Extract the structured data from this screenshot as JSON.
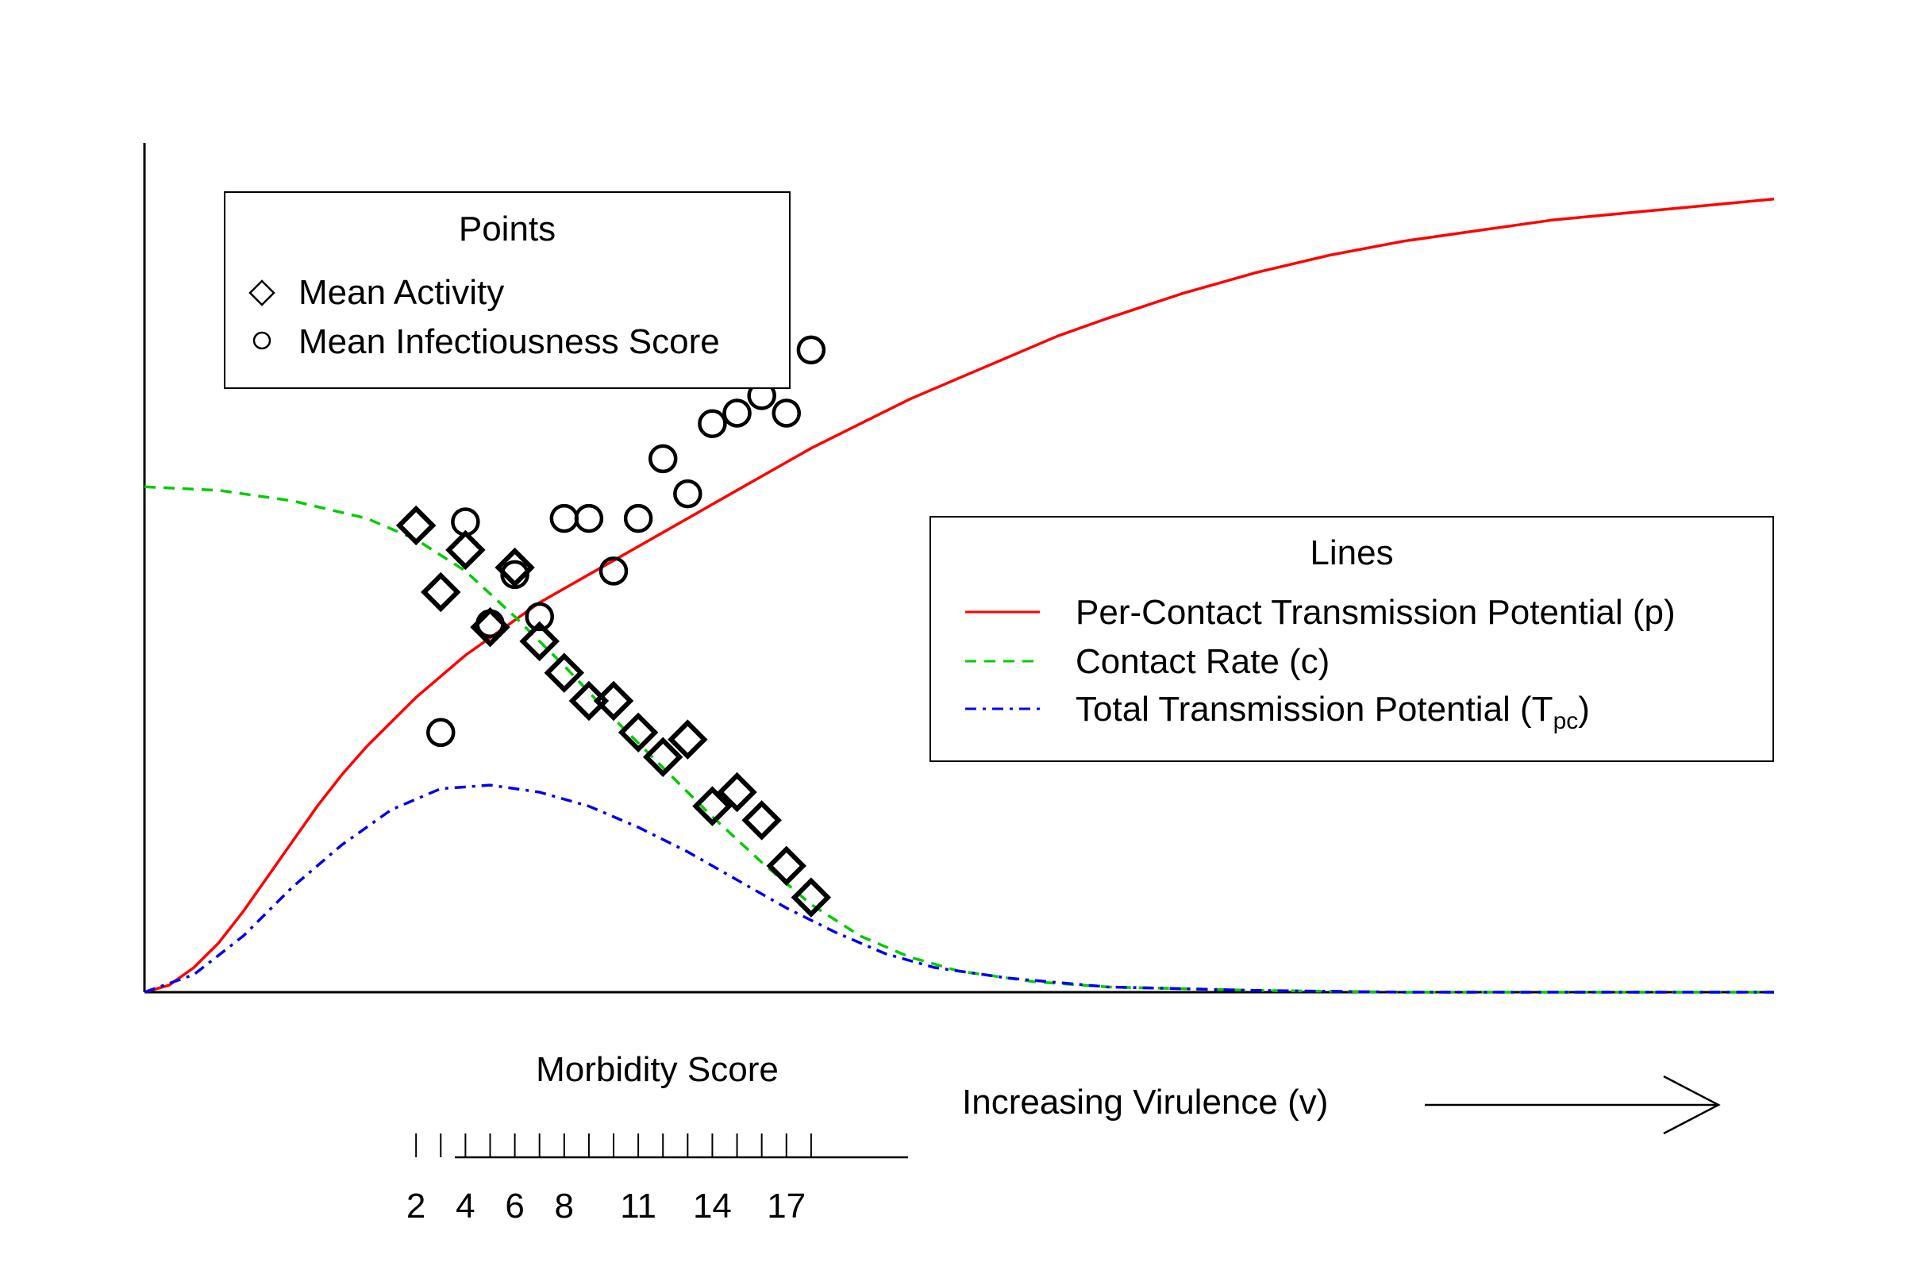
{
  "chart_data": {
    "type": "line",
    "title": "",
    "xlabel": "Increasing Virulence (v)",
    "ylabel": "",
    "x_axis_ticks": false,
    "y_axis_ticks": false,
    "grid": false,
    "secondary_axis": {
      "label": "Morbidity Score",
      "min": 2,
      "max": 18,
      "tick_labels": [
        "2",
        "4",
        "6",
        "8",
        "11",
        "14",
        "17"
      ],
      "tick_label_values": [
        2,
        4,
        6,
        8,
        11,
        14,
        17
      ],
      "minor_ticks": [
        2,
        3,
        4,
        5,
        6,
        7,
        8,
        9,
        10,
        11,
        12,
        13,
        14,
        15,
        16,
        17,
        18
      ]
    },
    "series": [
      {
        "name": "Per-Contact Transmission Potential (p)",
        "color": "#ff0000",
        "dash": "solid",
        "legend_sub": "",
        "points": [
          [
            -9,
            0.0
          ],
          [
            -8,
            0.02
          ],
          [
            -7,
            0.07
          ],
          [
            -6,
            0.14
          ],
          [
            -5,
            0.23
          ],
          [
            -4,
            0.33
          ],
          [
            -3,
            0.43
          ],
          [
            -2,
            0.53
          ],
          [
            -1,
            0.62
          ],
          [
            0,
            0.7
          ],
          [
            1,
            0.77
          ],
          [
            2,
            0.84
          ],
          [
            3,
            0.9
          ],
          [
            4,
            0.96
          ],
          [
            5,
            1.01
          ],
          [
            6,
            1.06
          ],
          [
            7,
            1.11
          ],
          [
            8,
            1.15
          ],
          [
            9,
            1.19
          ],
          [
            10,
            1.23
          ],
          [
            11,
            1.27
          ],
          [
            12,
            1.31
          ],
          [
            13,
            1.35
          ],
          [
            14,
            1.39
          ],
          [
            15,
            1.43
          ],
          [
            16,
            1.47
          ],
          [
            17,
            1.51
          ],
          [
            18,
            1.55
          ],
          [
            20,
            1.62
          ],
          [
            22,
            1.69
          ],
          [
            24,
            1.75
          ],
          [
            26,
            1.81
          ],
          [
            28,
            1.87
          ],
          [
            30,
            1.92
          ],
          [
            33,
            1.99
          ],
          [
            36,
            2.05
          ],
          [
            39,
            2.1
          ],
          [
            42,
            2.14
          ],
          [
            45,
            2.17
          ],
          [
            48,
            2.2
          ],
          [
            51,
            2.22
          ],
          [
            54,
            2.24
          ],
          [
            57,
            2.26
          ]
        ]
      },
      {
        "name": "Contact Rate (c)",
        "color": "#00cc00",
        "dash": "dashed",
        "legend_sub": "",
        "points": [
          [
            -9,
            1.44
          ],
          [
            -6,
            1.43
          ],
          [
            -3,
            1.4
          ],
          [
            0,
            1.35
          ],
          [
            2,
            1.29
          ],
          [
            4,
            1.2
          ],
          [
            6,
            1.07
          ],
          [
            8,
            0.93
          ],
          [
            10,
            0.78
          ],
          [
            12,
            0.64
          ],
          [
            14,
            0.5
          ],
          [
            16,
            0.37
          ],
          [
            18,
            0.25
          ],
          [
            20,
            0.16
          ],
          [
            22,
            0.1
          ],
          [
            24,
            0.06
          ],
          [
            27,
            0.03
          ],
          [
            30,
            0.015
          ],
          [
            36,
            0.005
          ],
          [
            42,
            0.0
          ],
          [
            57,
            0.0
          ]
        ]
      },
      {
        "name": "Total Transmission Potential (T",
        "color": "#0000ee",
        "dash": "dashdot",
        "legend_sub": "pc",
        "legend_suffix": ")",
        "points": [
          [
            -9,
            0.0
          ],
          [
            -7,
            0.05
          ],
          [
            -5,
            0.16
          ],
          [
            -3,
            0.3
          ],
          [
            -1,
            0.42
          ],
          [
            1,
            0.52
          ],
          [
            3,
            0.58
          ],
          [
            5,
            0.59
          ],
          [
            7,
            0.57
          ],
          [
            9,
            0.53
          ],
          [
            11,
            0.47
          ],
          [
            13,
            0.4
          ],
          [
            15,
            0.32
          ],
          [
            17,
            0.24
          ],
          [
            19,
            0.17
          ],
          [
            21,
            0.11
          ],
          [
            23,
            0.07
          ],
          [
            26,
            0.04
          ],
          [
            30,
            0.015
          ],
          [
            36,
            0.005
          ],
          [
            42,
            0.0
          ],
          [
            57,
            0.0
          ]
        ]
      }
    ],
    "point_series": [
      {
        "name": "Mean Activity",
        "marker": "diamond",
        "points": [
          [
            2,
            1.33
          ],
          [
            3,
            1.14
          ],
          [
            4,
            1.26
          ],
          [
            5,
            1.04
          ],
          [
            6,
            1.21
          ],
          [
            7,
            1.0
          ],
          [
            8,
            0.91
          ],
          [
            9,
            0.83
          ],
          [
            10,
            0.83
          ],
          [
            11,
            0.74
          ],
          [
            12,
            0.67
          ],
          [
            13,
            0.72
          ],
          [
            14,
            0.53
          ],
          [
            15,
            0.57
          ],
          [
            16,
            0.49
          ],
          [
            17,
            0.36
          ],
          [
            18,
            0.27
          ]
        ]
      },
      {
        "name": "Mean Infectiousness Score",
        "marker": "circle",
        "points": [
          [
            2,
            1.83
          ],
          [
            3,
            0.74
          ],
          [
            4,
            1.34
          ],
          [
            5,
            1.05
          ],
          [
            6,
            1.19
          ],
          [
            7,
            1.07
          ],
          [
            8,
            1.35
          ],
          [
            9,
            1.35
          ],
          [
            10,
            1.2
          ],
          [
            11,
            1.35
          ],
          [
            12,
            1.52
          ],
          [
            13,
            1.42
          ],
          [
            14,
            1.62
          ],
          [
            15,
            1.65
          ],
          [
            16,
            1.7
          ],
          [
            17,
            1.65
          ],
          [
            18,
            1.83
          ]
        ]
      }
    ],
    "legends": [
      {
        "title": "Points",
        "entries": [
          "Mean Activity",
          "Mean Infectiousness Score"
        ],
        "placement": "top-left"
      },
      {
        "title": "Lines",
        "entries": [
          "Per-Contact Transmission Potential (p)",
          "Contact Rate (c)",
          "Total Transmission Potential (Tpc)"
        ],
        "placement": "right"
      }
    ]
  }
}
